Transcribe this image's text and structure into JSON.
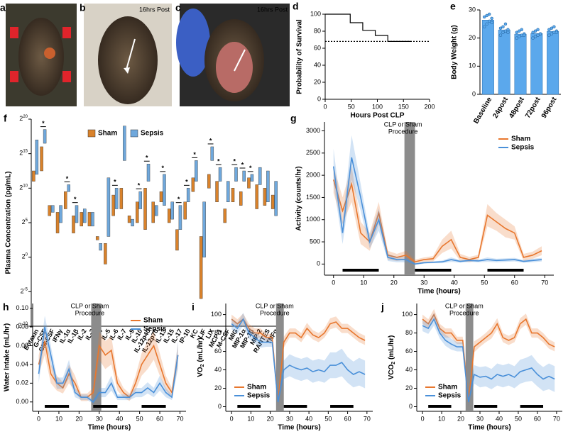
{
  "photos": [
    {
      "panel": "a"
    },
    {
      "panel": "b",
      "caption": "16hrs Post"
    },
    {
      "panel": "c",
      "caption": "16hrs Post"
    }
  ],
  "chart_data": [
    {
      "type": "line",
      "panel": "d",
      "step": true,
      "x_label": "Hours Post CLP",
      "y_label": "Probability of Survival",
      "x": [
        0,
        48,
        72,
        96,
        120,
        165
      ],
      "values": [
        100,
        90,
        81,
        75,
        68,
        68
      ],
      "color": "#000000",
      "reference_y": 68,
      "xlim": [
        0,
        200
      ],
      "xticks": [
        0,
        50,
        100,
        150,
        200
      ],
      "ylim": [
        0,
        100
      ],
      "yticks": [
        0,
        20,
        40,
        60,
        80,
        100
      ]
    },
    {
      "type": "bar",
      "panel": "e",
      "y_label": "Body Weight (g)",
      "categories": [
        "Baseline",
        "24post",
        "48post",
        "72post",
        "96post"
      ],
      "values": [
        26.4,
        22.9,
        21.4,
        21.6,
        22.4
      ],
      "color": "#5ba8ec",
      "points": [
        [
          24,
          25,
          26,
          27,
          27.5,
          28,
          28.5,
          25.5
        ],
        [
          21,
          22,
          22.5,
          23,
          23.5,
          24,
          25,
          22
        ],
        [
          20,
          20.5,
          21,
          21.5,
          22,
          22.5,
          23,
          21
        ],
        [
          20,
          20.5,
          21,
          21.5,
          22,
          22.5,
          23,
          21.5
        ],
        [
          21,
          21.5,
          22,
          22.5,
          23,
          23.5,
          24,
          22
        ]
      ],
      "ylim": [
        0,
        30
      ],
      "yticks": [
        0,
        10,
        20,
        30
      ]
    },
    {
      "type": "range",
      "panel": "f",
      "y_label": "Plasma Concentration (pg/mL)",
      "log_base": 2,
      "legend": "top",
      "categories": [
        "Eotaxin",
        "G-CSF",
        "GM-CSF",
        "IFNγ",
        "IL-1α",
        "IL-1β",
        "IL-2",
        "IL-3",
        "IL-4",
        "IL-5",
        "IL-6",
        "IL-7",
        "IL-9",
        "IL-10",
        "IL-12p40",
        "IL-12p70",
        "IL-13",
        "IL-15",
        "IL-17",
        "IP-10",
        "KC",
        "LIF",
        "LIX",
        "MCP-1",
        "M-CSF",
        "MIG",
        "MIP-1α",
        "MIP-1β",
        "MIP-2",
        "RANTES",
        "TNFα"
      ],
      "significant": [
        false,
        true,
        false,
        false,
        true,
        true,
        false,
        false,
        false,
        false,
        true,
        false,
        false,
        true,
        true,
        false,
        true,
        false,
        true,
        true,
        true,
        false,
        true,
        true,
        false,
        true,
        true,
        true,
        false,
        false,
        false
      ],
      "significance_label": "*",
      "significant_label_color": "#3aaa35",
      "series": [
        {
          "name": "Sham",
          "color": "#d9822b",
          "low": [
            2048,
            5790,
            64,
            11.3,
            128,
            11.3,
            22.6,
            22.6,
            5.66,
            0.5,
            64,
            128,
            32,
            32,
            16,
            32,
            256,
            32,
            2,
            45.3,
            724,
            0.0156,
            1024,
            256,
            32,
            256,
            181,
            1024,
            128,
            181,
            128
          ],
          "high": [
            5790,
            65536,
            181,
            90.5,
            724,
            64,
            90.5,
            90.5,
            8,
            4,
            512,
            1024,
            64,
            256,
            1024,
            256,
            724,
            128,
            16,
            256,
            2900,
            8,
            4096,
            2048,
            128,
            1024,
            724,
            2900,
            1450,
            1024,
            512
          ]
        },
        {
          "name": "Sepsis",
          "color": "#6fa8dc",
          "low": [
            4096,
            92700,
            90.5,
            32,
            724,
            32,
            32,
            22.6,
            2,
            8,
            128,
            16384,
            22.6,
            128,
            2048,
            64,
            181,
            45.3,
            16,
            256,
            2048,
            1,
            16384,
            2048,
            256,
            2048,
            2048,
            2048,
            1450,
            256,
            64
          ],
          "high": [
            131072,
            371000,
            181,
            181,
            1450,
            181,
            128,
            90.5,
            4,
            2900,
            1024,
            524288,
            45.3,
            724,
            11600,
            181,
            4096,
            256,
            181,
            1024,
            16384,
            256,
            65536,
            8192,
            2048,
            8192,
            5790,
            4096,
            8192,
            5790,
            2048
          ]
        }
      ],
      "ylim": [
        0.0009765625,
        1048576
      ],
      "yticks": [
        {
          "value": 1048576,
          "label": "2",
          "exponent": "20"
        },
        {
          "value": 32768,
          "label": "2",
          "exponent": "15"
        },
        {
          "value": 1024,
          "label": "2",
          "exponent": "10"
        },
        {
          "value": 32,
          "label": "2",
          "exponent": "5"
        },
        {
          "value": 1,
          "label": "2",
          "exponent": "0"
        },
        {
          "value": 0.03125,
          "label": "2",
          "exponent": "-5"
        },
        {
          "value": 0.0009765625,
          "label": "2",
          "exponent": "-10"
        }
      ]
    },
    {
      "type": "line",
      "panel": "g",
      "x_label": "Time (hours)",
      "y_label": "Activity (counts/hr)",
      "legend": "upper right",
      "annotation": [
        "CLP or Sham",
        "Procedure"
      ],
      "procedure": [
        23.5,
        27
      ],
      "dark_periods": [
        [
          3,
          15
        ],
        [
          27,
          39
        ],
        [
          51,
          63
        ]
      ],
      "x": [
        0,
        3,
        6,
        9,
        12,
        15,
        18,
        21,
        24,
        27,
        30,
        33,
        36,
        39,
        42,
        45,
        48,
        51,
        54,
        57,
        60,
        63,
        66,
        69
      ],
      "series": [
        {
          "name": "Sham",
          "color": "#e8772e",
          "values": [
            1900,
            1200,
            1800,
            700,
            500,
            1150,
            200,
            150,
            200,
            50,
            100,
            120,
            400,
            550,
            150,
            100,
            150,
            1100,
            950,
            800,
            700,
            150,
            200,
            300
          ],
          "error": [
            300,
            300,
            400,
            250,
            200,
            250,
            100,
            80,
            100,
            50,
            50,
            60,
            150,
            200,
            80,
            60,
            60,
            250,
            200,
            200,
            150,
            80,
            80,
            100
          ]
        },
        {
          "name": "Sepsis",
          "color": "#4a90d9",
          "values": [
            2200,
            700,
            2400,
            1500,
            500,
            1000,
            150,
            100,
            100,
            0,
            30,
            40,
            50,
            100,
            60,
            80,
            70,
            100,
            80,
            90,
            100,
            60,
            80,
            100
          ],
          "error": [
            400,
            250,
            500,
            300,
            150,
            250,
            80,
            60,
            60,
            20,
            20,
            20,
            30,
            50,
            30,
            30,
            30,
            50,
            40,
            40,
            40,
            30,
            40,
            40
          ]
        }
      ],
      "xlim": [
        -3,
        73
      ],
      "xticks": [
        0,
        10,
        20,
        30,
        40,
        50,
        60,
        70
      ],
      "ylim": [
        -250,
        3200
      ],
      "yticks": [
        0,
        500,
        1000,
        1500,
        2000,
        2500,
        3000
      ]
    },
    {
      "type": "line",
      "panel": "h",
      "x_label": "Time (hours)",
      "y_label": "Water Intake (mL/hr)",
      "legend": "upper right",
      "annotation": [
        "CLP or Sham",
        "Procedure"
      ],
      "procedure": [
        26,
        31
      ],
      "dark_periods": [
        [
          3,
          15
        ],
        [
          27,
          39
        ],
        [
          51,
          63
        ]
      ],
      "x": [
        0,
        3,
        6,
        9,
        12,
        15,
        18,
        21,
        24,
        27,
        30,
        33,
        36,
        39,
        42,
        45,
        48,
        51,
        54,
        57,
        60,
        63,
        66,
        69
      ],
      "series": [
        {
          "name": "Sham",
          "color": "#e8772e",
          "values": [
            0.04,
            0.065,
            0.03,
            0.02,
            0.015,
            0.03,
            0.02,
            0.005,
            0.005,
            0.01,
            0.06,
            0.05,
            0.055,
            0.02,
            0.01,
            0.005,
            0.02,
            0.04,
            0.05,
            0.06,
            0.04,
            0.02,
            0.01,
            0.05
          ],
          "error": [
            0.01,
            0.015,
            0.01,
            0.008,
            0.006,
            0.01,
            0.008,
            0.004,
            0.004,
            0.005,
            0.015,
            0.015,
            0.015,
            0.008,
            0.005,
            0.004,
            0.008,
            0.012,
            0.015,
            0.015,
            0.012,
            0.008,
            0.005,
            0.012
          ]
        },
        {
          "name": "Sepsis",
          "color": "#4a90d9",
          "values": [
            0.03,
            0.08,
            0.05,
            0.02,
            0.02,
            0.035,
            0.01,
            0.005,
            0.005,
            0,
            0.01,
            0.01,
            0.02,
            0.005,
            0.005,
            0.005,
            0.01,
            0.01,
            0.015,
            0.01,
            0.02,
            0.01,
            0.005,
            0.05
          ],
          "error": [
            0.01,
            0.012,
            0.01,
            0.006,
            0.006,
            0.01,
            0.005,
            0.003,
            0.003,
            0.002,
            0.005,
            0.005,
            0.008,
            0.003,
            0.003,
            0.003,
            0.005,
            0.005,
            0.006,
            0.005,
            0.008,
            0.005,
            0.003,
            0.015
          ]
        }
      ],
      "xlim": [
        -3,
        73
      ],
      "xticks": [
        0,
        10,
        20,
        30,
        40,
        50,
        60,
        70
      ],
      "ylim": [
        -0.01,
        0.105
      ],
      "yticks": [
        {
          "value": 0,
          "label": "0.00"
        },
        0.02,
        0.04,
        0.06,
        0.08,
        {
          "value": 0.1,
          "label": "0.10"
        }
      ]
    },
    {
      "type": "line",
      "panel": "i",
      "x_label": "Time (hours)",
      "y_label": {
        "text": "VO",
        "sub": "2",
        "rest": " (mL/hr)"
      },
      "legend": "lower left",
      "annotation": [
        "CLP or Sham",
        "Procedure"
      ],
      "procedure": [
        23,
        27
      ],
      "dark_periods": [
        [
          3,
          15
        ],
        [
          27,
          39
        ],
        [
          51,
          63
        ]
      ],
      "x": [
        0,
        3,
        6,
        9,
        12,
        15,
        18,
        21,
        24,
        27,
        30,
        33,
        36,
        39,
        42,
        45,
        48,
        51,
        54,
        57,
        60,
        63,
        66,
        69
      ],
      "series": [
        {
          "name": "Sham",
          "color": "#e8772e",
          "values": [
            95,
            90,
            95,
            85,
            80,
            80,
            75,
            75,
            5,
            70,
            80,
            80,
            75,
            85,
            78,
            75,
            80,
            90,
            92,
            85,
            85,
            80,
            75,
            72
          ],
          "error": [
            5,
            5,
            6,
            5,
            5,
            5,
            4,
            4,
            5,
            6,
            5,
            5,
            5,
            6,
            5,
            5,
            5,
            6,
            6,
            5,
            5,
            5,
            5,
            5
          ]
        },
        {
          "name": "Sepsis",
          "color": "#4a90d9",
          "values": [
            90,
            85,
            95,
            80,
            75,
            70,
            70,
            70,
            5,
            40,
            45,
            42,
            40,
            42,
            38,
            40,
            38,
            45,
            45,
            48,
            40,
            35,
            38,
            35
          ],
          "error": [
            6,
            6,
            7,
            6,
            6,
            6,
            5,
            5,
            5,
            10,
            12,
            12,
            12,
            12,
            12,
            12,
            12,
            14,
            14,
            15,
            14,
            14,
            15,
            15
          ]
        }
      ],
      "xlim": [
        -3,
        73
      ],
      "xticks": [
        0,
        10,
        20,
        30,
        40,
        50,
        60,
        70
      ],
      "ylim": [
        -5,
        112
      ],
      "yticks": [
        0,
        20,
        40,
        60,
        80,
        100
      ]
    },
    {
      "type": "line",
      "panel": "j",
      "x_label": "Time (hours)",
      "y_label": {
        "text": "VCO",
        "sub": "2",
        "rest": " (mL/hr)"
      },
      "legend": "lower left",
      "annotation": [
        "CLP or Sham",
        "Procedure"
      ],
      "procedure": [
        22.5,
        26.5
      ],
      "dark_periods": [
        [
          3,
          15
        ],
        [
          27,
          39
        ],
        [
          51,
          63
        ]
      ],
      "x": [
        0,
        3,
        6,
        9,
        12,
        15,
        18,
        21,
        24,
        27,
        30,
        33,
        36,
        39,
        42,
        45,
        48,
        51,
        54,
        57,
        60,
        63,
        66,
        69
      ],
      "series": [
        {
          "name": "Sham",
          "color": "#e8772e",
          "values": [
            95,
            90,
            100,
            85,
            80,
            80,
            72,
            72,
            5,
            65,
            70,
            75,
            80,
            90,
            75,
            72,
            75,
            90,
            95,
            80,
            80,
            75,
            68,
            65
          ],
          "error": [
            5,
            5,
            6,
            5,
            5,
            5,
            4,
            4,
            5,
            6,
            5,
            5,
            6,
            6,
            5,
            5,
            5,
            6,
            6,
            5,
            5,
            5,
            5,
            5
          ]
        },
        {
          "name": "Sepsis",
          "color": "#4a90d9",
          "values": [
            88,
            85,
            95,
            80,
            72,
            68,
            65,
            65,
            5,
            35,
            32,
            33,
            30,
            35,
            33,
            35,
            32,
            38,
            40,
            42,
            35,
            30,
            33,
            30
          ],
          "error": [
            6,
            6,
            7,
            6,
            6,
            6,
            5,
            5,
            5,
            10,
            11,
            11,
            11,
            12,
            12,
            12,
            12,
            13,
            13,
            14,
            13,
            13,
            14,
            14
          ]
        }
      ],
      "xlim": [
        -3,
        73
      ],
      "xticks": [
        0,
        10,
        20,
        30,
        40,
        50,
        60,
        70
      ],
      "ylim": [
        -5,
        112
      ],
      "yticks": [
        0,
        20,
        40,
        60,
        80,
        100
      ]
    }
  ]
}
